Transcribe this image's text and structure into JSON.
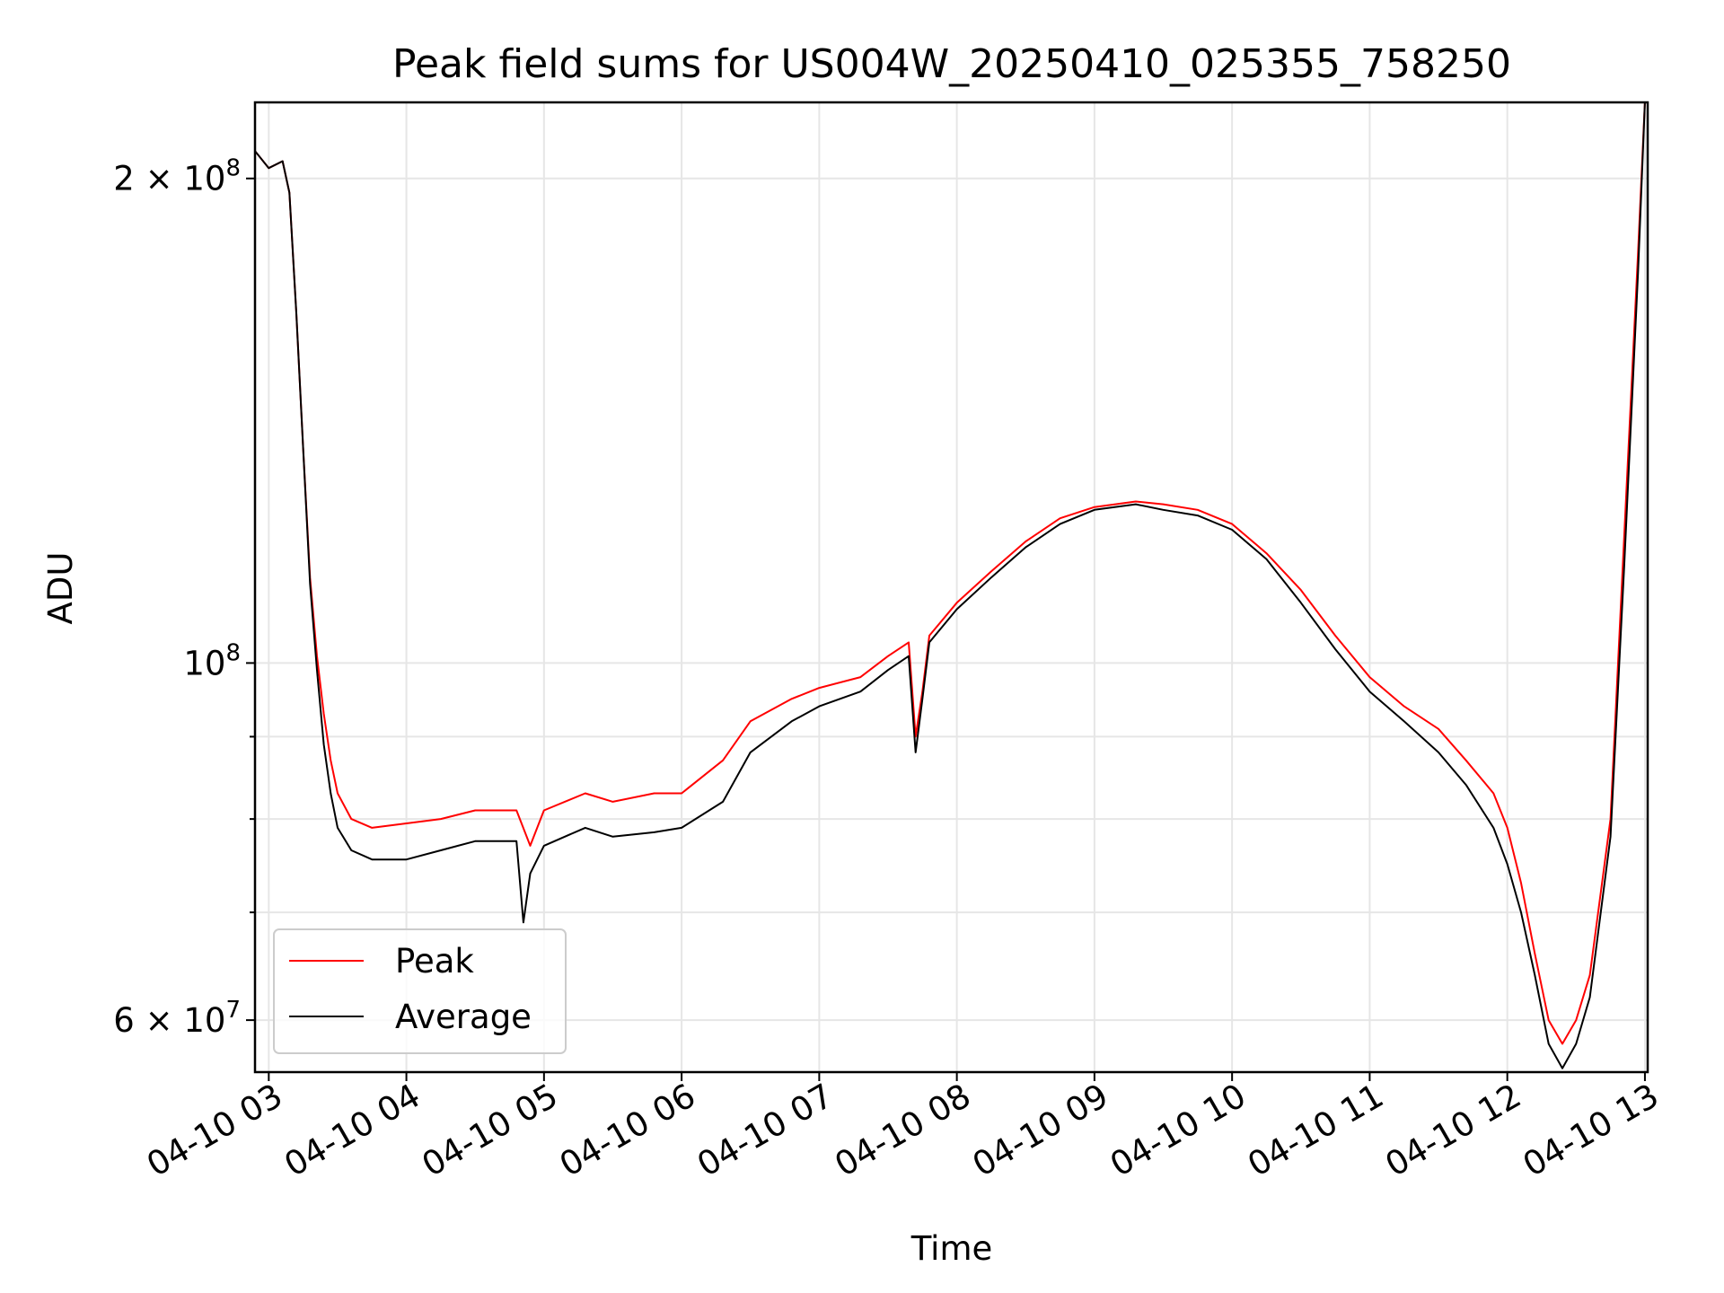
{
  "chart_data": {
    "type": "line",
    "title": "Peak field sums for US004W_20250410_025355_758250",
    "xlabel": "Time",
    "ylabel": "ADU",
    "x_unit": "hours (2025-04-10, UTC)",
    "xlim": [
      2.9,
      13.02
    ],
    "ylim": [
      55700000,
      223000000
    ],
    "y_scale": "log",
    "grid": true,
    "legend_position": "lower-left",
    "x_ticks": [
      {
        "value": 3,
        "label": "04-10 03"
      },
      {
        "value": 4,
        "label": "04-10 04"
      },
      {
        "value": 5,
        "label": "04-10 05"
      },
      {
        "value": 6,
        "label": "04-10 06"
      },
      {
        "value": 7,
        "label": "04-10 07"
      },
      {
        "value": 8,
        "label": "04-10 08"
      },
      {
        "value": 9,
        "label": "04-10 09"
      },
      {
        "value": 10,
        "label": "04-10 10"
      },
      {
        "value": 11,
        "label": "04-10 11"
      },
      {
        "value": 12,
        "label": "04-10 12"
      },
      {
        "value": 13,
        "label": "04-10 13"
      }
    ],
    "y_major_ticks": [
      {
        "value": 100000000,
        "base": "10",
        "exp": "8"
      },
      {
        "value": 200000000,
        "base": "2 × 10",
        "exp": "8"
      },
      {
        "value": 60000000,
        "base": "6 × 10",
        "exp": "7"
      }
    ],
    "y_minor_ticks": [
      70000000,
      80000000,
      90000000
    ],
    "series": [
      {
        "name": "Peak",
        "color": "#ff0000",
        "x": [
          2.9,
          3.0,
          3.1,
          3.15,
          3.2,
          3.25,
          3.3,
          3.35,
          3.4,
          3.45,
          3.5,
          3.6,
          3.75,
          4.0,
          4.25,
          4.5,
          4.8,
          4.9,
          5.0,
          5.3,
          5.5,
          5.8,
          6.0,
          6.3,
          6.5,
          6.8,
          7.0,
          7.3,
          7.5,
          7.65,
          7.7,
          7.75,
          7.8,
          8.0,
          8.25,
          8.5,
          8.75,
          9.0,
          9.3,
          9.5,
          9.75,
          10.0,
          10.25,
          10.5,
          10.75,
          11.0,
          11.25,
          11.5,
          11.7,
          11.9,
          12.0,
          12.1,
          12.2,
          12.3,
          12.4,
          12.5,
          12.6,
          12.75,
          12.85,
          12.95,
          13.0
        ],
        "y": [
          208000000,
          203000000,
          205000000,
          196000000,
          165000000,
          136000000,
          113000000,
          101000000,
          93000000,
          87000000,
          83000000,
          80000000,
          79000000,
          79500000,
          80000000,
          81000000,
          81000000,
          77000000,
          81000000,
          83000000,
          82000000,
          83000000,
          83000000,
          87000000,
          92000000,
          95000000,
          96500000,
          98000000,
          101000000,
          103000000,
          90000000,
          96000000,
          104000000,
          109000000,
          114000000,
          119000000,
          123000000,
          125000000,
          126000000,
          125500000,
          124500000,
          122000000,
          117000000,
          111000000,
          104000000,
          98000000,
          94000000,
          91000000,
          87000000,
          83000000,
          79000000,
          73000000,
          66000000,
          60000000,
          58000000,
          60000000,
          64000000,
          80000000,
          120000000,
          180000000,
          223000000
        ]
      },
      {
        "name": "Average",
        "color": "#000000",
        "x": [
          2.9,
          3.0,
          3.1,
          3.15,
          3.2,
          3.25,
          3.3,
          3.35,
          3.4,
          3.45,
          3.5,
          3.6,
          3.75,
          4.0,
          4.25,
          4.5,
          4.8,
          4.85,
          4.9,
          5.0,
          5.3,
          5.5,
          5.8,
          6.0,
          6.3,
          6.5,
          6.8,
          7.0,
          7.3,
          7.5,
          7.65,
          7.7,
          7.75,
          7.8,
          8.0,
          8.25,
          8.5,
          8.75,
          9.0,
          9.3,
          9.5,
          9.75,
          10.0,
          10.25,
          10.5,
          10.75,
          11.0,
          11.25,
          11.5,
          11.7,
          11.9,
          12.0,
          12.1,
          12.2,
          12.3,
          12.4,
          12.5,
          12.6,
          12.75,
          12.85,
          12.95,
          13.0
        ],
        "y": [
          208000000,
          203000000,
          205000000,
          196000000,
          165000000,
          136000000,
          112000000,
          99000000,
          89000000,
          83000000,
          79000000,
          76500000,
          75500000,
          75500000,
          76500000,
          77500000,
          77500000,
          69000000,
          74000000,
          77000000,
          79000000,
          78000000,
          78500000,
          79000000,
          82000000,
          88000000,
          92000000,
          94000000,
          96000000,
          99000000,
          101000000,
          88000000,
          95000000,
          103000000,
          108000000,
          113000000,
          118000000,
          122000000,
          124500000,
          125500000,
          124500000,
          123500000,
          121000000,
          116000000,
          109000000,
          102000000,
          96000000,
          92000000,
          88000000,
          84000000,
          79000000,
          75000000,
          70000000,
          64000000,
          58000000,
          56000000,
          58000000,
          62000000,
          78000000,
          115000000,
          175000000,
          223000000
        ]
      }
    ]
  }
}
